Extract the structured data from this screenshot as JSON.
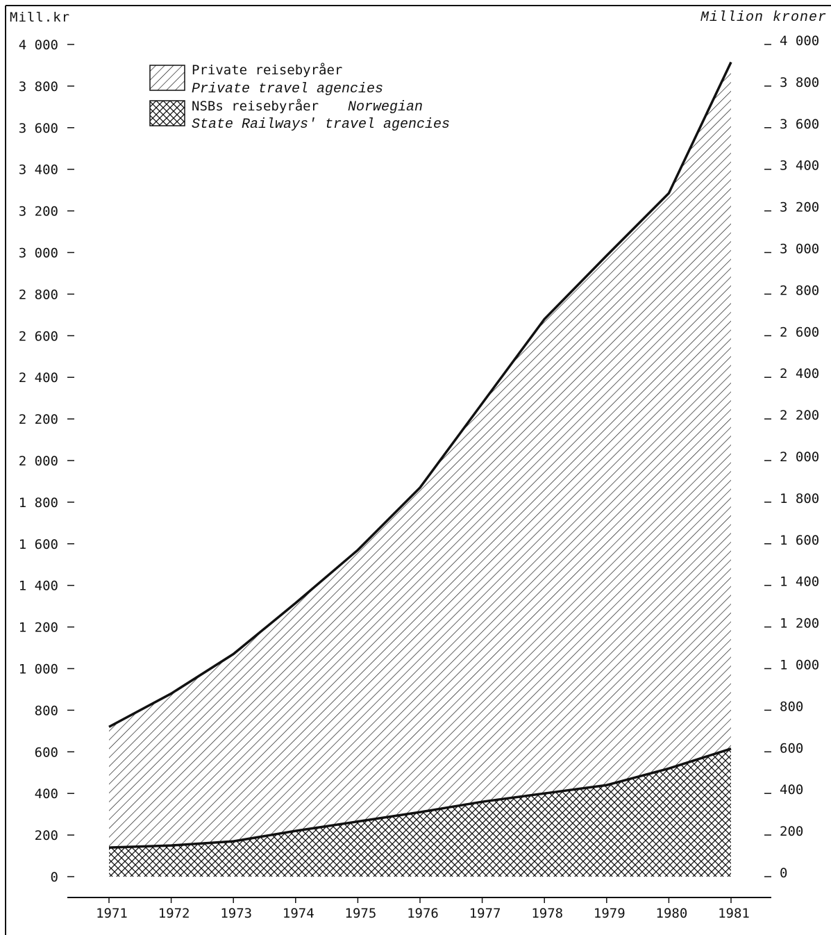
{
  "header": {
    "left_unit": "Mill.kr",
    "right_unit": "Million kroner"
  },
  "legend": {
    "private_no": "Private reisebyråer",
    "private_en": "Private travel agencies",
    "nsb_no": "NSBs reisebyråer",
    "nsb_en_1": "Norwegian",
    "nsb_en_2": "State Railways' travel agencies"
  },
  "chart_data": {
    "type": "area",
    "stacked": true,
    "x": [
      1971,
      1972,
      1973,
      1974,
      1975,
      1976,
      1977,
      1978,
      1979,
      1980,
      1981
    ],
    "x_tick_labels": [
      "1971",
      "1972",
      "1973",
      "1974",
      "1975",
      "1976",
      "1977",
      "1978",
      "1979",
      "1980",
      "1981"
    ],
    "series": [
      {
        "name": "NSBs reisebyråer / Norwegian State Railways' travel agencies",
        "fill": "crosshatch",
        "values": [
          140,
          150,
          170,
          220,
          265,
          310,
          360,
          400,
          440,
          520,
          615
        ]
      },
      {
        "name": "Private reisebyråer / Private travel agencies",
        "fill": "diagonal-hatch",
        "values": [
          580,
          730,
          900,
          1095,
          1305,
          1560,
          1915,
          2280,
          2545,
          2765,
          3300
        ]
      }
    ],
    "totals": [
      720,
      880,
      1070,
      1315,
      1570,
      1870,
      2275,
      2680,
      2985,
      3285,
      3915
    ],
    "ylim": [
      0,
      4000
    ],
    "y_ticks": [
      0,
      200,
      400,
      600,
      800,
      1000,
      1200,
      1400,
      1600,
      1800,
      2000,
      2200,
      2400,
      2600,
      2800,
      3000,
      3200,
      3400,
      3600,
      3800,
      4000
    ],
    "y_tick_labels": [
      "0",
      "200",
      "400",
      "600",
      "800",
      "1 000",
      "1 200",
      "1 400",
      "1 600",
      "1 800",
      "2 000",
      "2 200",
      "2 400",
      "2 600",
      "2 800",
      "3 000",
      "3 200",
      "3 400",
      "3 600",
      "3 800",
      "4 000"
    ],
    "grid": false,
    "legend_position": "top-left"
  }
}
